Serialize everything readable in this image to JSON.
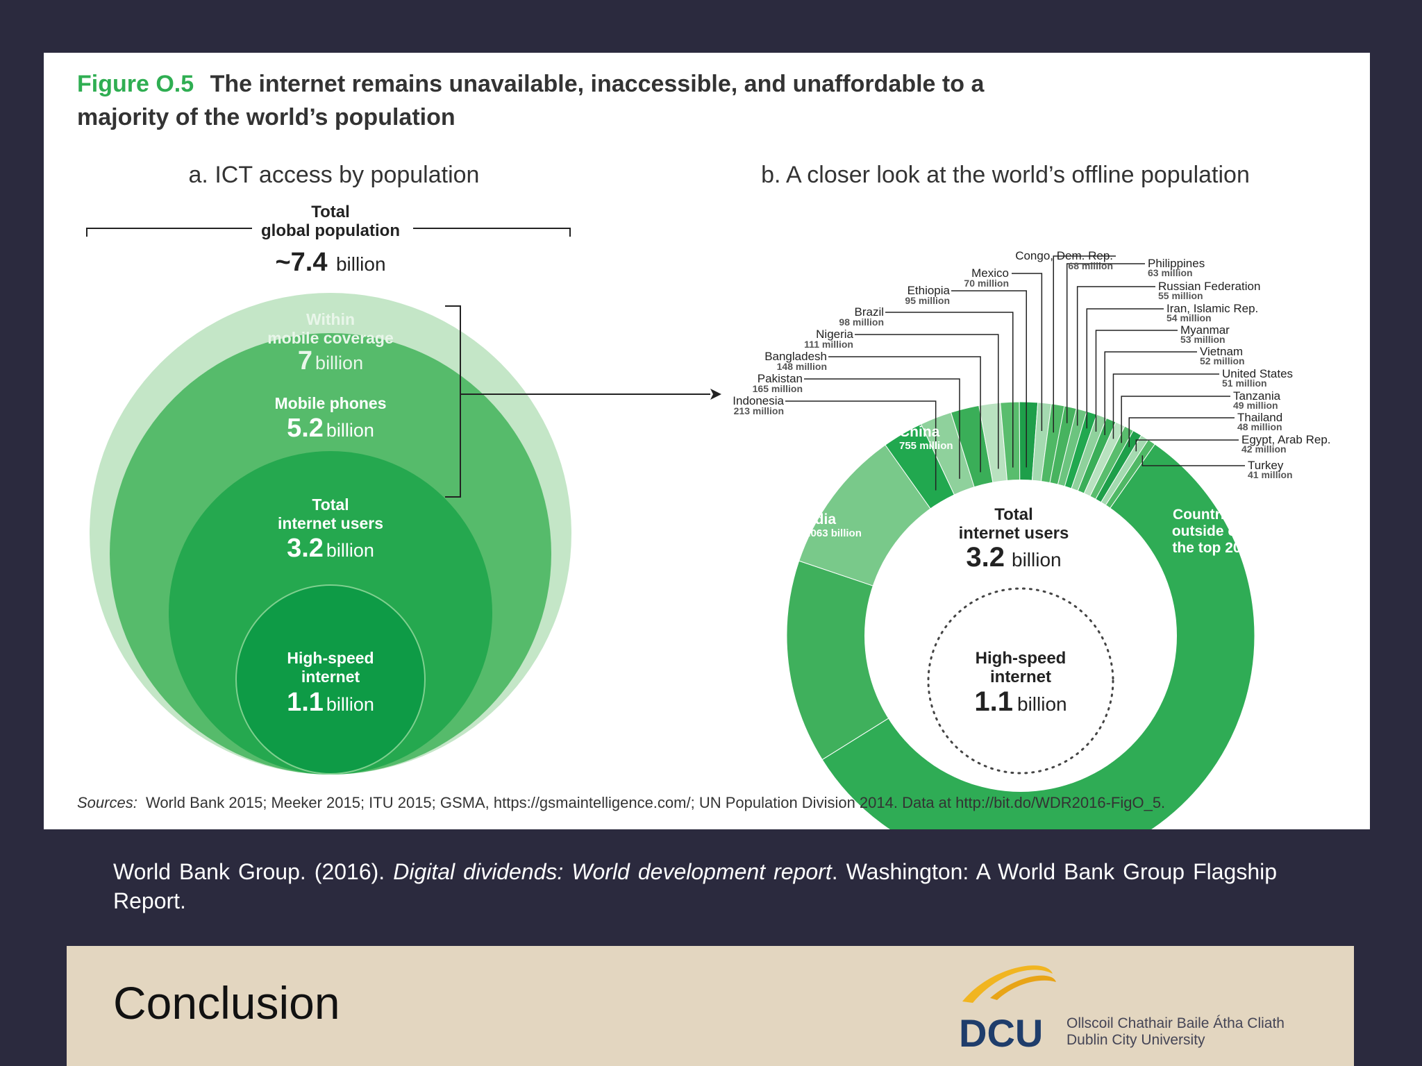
{
  "figure": {
    "label": "Figure O.5",
    "title_line1": "The internet remains unavailable, inaccessible, and unaffordable to a",
    "title_line2": "majority of the world’s population",
    "sources_prefix": "Sources:",
    "sources": "World Bank 2015; Meeker 2015; ITU 2015; GSMA, https://gsmaintelligence.com/; UN Population Division 2014. Data at http://bit.do/WDR2016-FigO_5."
  },
  "chart_data": [
    {
      "type": "nested-circles",
      "title": "a. ICT access by population",
      "total": {
        "label_line1": "Total",
        "label_line2": "global population",
        "value_prefix": "~7.4",
        "value_unit": "billion",
        "value": 7.4
      },
      "levels": [
        {
          "label_lines": [
            "Within",
            "mobile coverage"
          ],
          "value_text": "7",
          "unit": "billion",
          "value": 7.0,
          "color": "#c3e6c6"
        },
        {
          "label_lines": [
            "Mobile phones"
          ],
          "value_text": "5.2",
          "unit": "billion",
          "value": 5.2,
          "color": "#55bb6a"
        },
        {
          "label_lines": [
            "Total",
            "internet users"
          ],
          "value_text": "3.2",
          "unit": "billion",
          "value": 3.2,
          "color": "#23a84e"
        },
        {
          "label_lines": [
            "High-speed",
            "internet"
          ],
          "value_text": "1.1",
          "unit": "billion",
          "value": 1.1,
          "color": "#0d9b45"
        }
      ]
    },
    {
      "type": "pie",
      "title": "b. A closer look at the world’s offline population",
      "center": {
        "label_line1": "Total",
        "label_line2": "internet users",
        "value_text": "3.2",
        "unit": "billion"
      },
      "inner": {
        "label_line1": "High-speed",
        "label_line2": "internet",
        "value_text": "1.1",
        "unit": "billion"
      },
      "slices": [
        {
          "name": "India",
          "value_label": "1.063 billion",
          "value": 1063
        },
        {
          "name": "China",
          "value_label": "755 million",
          "value": 755
        },
        {
          "name": "Indonesia",
          "value_label": "213 million",
          "value": 213
        },
        {
          "name": "Pakistan",
          "value_label": "165 million",
          "value": 165
        },
        {
          "name": "Bangladesh",
          "value_label": "148 million",
          "value": 148
        },
        {
          "name": "Nigeria",
          "value_label": "111 million",
          "value": 111
        },
        {
          "name": "Brazil",
          "value_label": "98 million",
          "value": 98
        },
        {
          "name": "Ethiopia",
          "value_label": "95 million",
          "value": 95
        },
        {
          "name": "Mexico",
          "value_label": "70 million",
          "value": 70
        },
        {
          "name": "Congo, Dem. Rep.",
          "value_label": "68 million",
          "value": 68
        },
        {
          "name": "Philippines",
          "value_label": "63 million",
          "value": 63
        },
        {
          "name": "Russian Federation",
          "value_label": "55 million",
          "value": 55
        },
        {
          "name": "Iran, Islamic Rep.",
          "value_label": "54 million",
          "value": 54
        },
        {
          "name": "Myanmar",
          "value_label": "53 million",
          "value": 53
        },
        {
          "name": "Vietnam",
          "value_label": "52 million",
          "value": 52
        },
        {
          "name": "United States",
          "value_label": "51 million",
          "value": 51
        },
        {
          "name": "Tanzania",
          "value_label": "49 million",
          "value": 49
        },
        {
          "name": "Thailand",
          "value_label": "48 million",
          "value": 48
        },
        {
          "name": "Egypt, Arab Rep.",
          "value_label": "42 million",
          "value": 42
        },
        {
          "name": "Turkey",
          "value_label": "41 million",
          "value": 41
        }
      ],
      "other": {
        "label_lines": [
          "Countries",
          "outside of",
          "the top 20"
        ]
      }
    }
  ],
  "citation": {
    "authors": "World Bank Group. (2016).",
    "title": "Digital dividends: World development report",
    "rest": ". Washington: A World Bank Group Flagship Report."
  },
  "footer": {
    "title": "Conclusion",
    "logo_text": "DCU",
    "university_line1": "Ollscoil Chathair Baile Átha Cliath",
    "university_line2": "Dublin City University"
  }
}
